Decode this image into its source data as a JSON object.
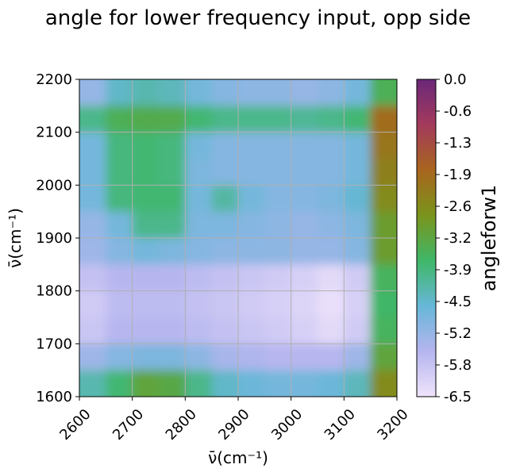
{
  "chart_data": {
    "type": "heatmap",
    "title": "angle for lower frequency input, opp side",
    "xlabel": "ν̄(cm⁻¹)",
    "ylabel": "ν̄(cm⁻¹)",
    "xlim": [
      2600,
      3200
    ],
    "ylim": [
      1600,
      2200
    ],
    "x_ticks": [
      "2600",
      "2700",
      "2800",
      "2900",
      "3000",
      "3100",
      "3200"
    ],
    "y_ticks": [
      "1600",
      "1700",
      "1800",
      "1900",
      "2000",
      "2100",
      "2200"
    ],
    "grid": true,
    "colorbar": {
      "label": "angleforw1",
      "range": [
        -6.5,
        0.0
      ],
      "tick_labels": [
        "0.0",
        "-0.6",
        "-1.3",
        "-1.9",
        "-2.6",
        "-3.2",
        "-3.9",
        "-4.5",
        "-5.2",
        "-5.8",
        "-6.5"
      ],
      "colors": [
        "#f0e4fb",
        "#b5b5ef",
        "#67b7d8",
        "#3fb768",
        "#7a941c",
        "#a8651e",
        "#a43a5c",
        "#6a2879"
      ]
    },
    "z_grid": {
      "x_centers": [
        2625,
        2675,
        2725,
        2775,
        2825,
        2875,
        2925,
        2975,
        3025,
        3075,
        3125,
        3175
      ],
      "y_centers": [
        2175,
        2125,
        2075,
        2025,
        1975,
        1925,
        1875,
        1825,
        1775,
        1725,
        1675,
        1625
      ],
      "values": [
        [
          -5.2,
          -4.5,
          -4.3,
          -4.4,
          -4.8,
          -5.0,
          -5.1,
          -5.1,
          -5.2,
          -5.1,
          -4.8,
          -3.5
        ],
        [
          -4.0,
          -3.5,
          -3.4,
          -3.4,
          -3.8,
          -4.0,
          -4.0,
          -4.0,
          -4.1,
          -4.0,
          -3.8,
          -2.0
        ],
        [
          -4.8,
          -3.9,
          -3.8,
          -3.9,
          -4.8,
          -5.0,
          -5.0,
          -5.0,
          -5.0,
          -5.0,
          -4.8,
          -2.2
        ],
        [
          -4.8,
          -3.9,
          -3.8,
          -3.9,
          -4.9,
          -5.0,
          -5.0,
          -5.0,
          -5.0,
          -5.0,
          -4.8,
          -2.4
        ],
        [
          -4.8,
          -3.9,
          -3.8,
          -3.8,
          -4.8,
          -4.2,
          -4.8,
          -5.0,
          -5.0,
          -4.9,
          -4.6,
          -2.6
        ],
        [
          -5.2,
          -4.8,
          -4.0,
          -4.0,
          -4.9,
          -4.9,
          -5.0,
          -5.1,
          -5.2,
          -5.1,
          -4.9,
          -3.0
        ],
        [
          -5.3,
          -5.0,
          -4.8,
          -4.9,
          -5.0,
          -5.1,
          -5.1,
          -5.1,
          -5.2,
          -5.2,
          -5.0,
          -3.0
        ],
        [
          -5.8,
          -5.6,
          -5.6,
          -5.6,
          -5.7,
          -5.8,
          -5.9,
          -6.0,
          -6.1,
          -6.3,
          -6.0,
          -3.6
        ],
        [
          -6.0,
          -5.7,
          -5.7,
          -5.7,
          -5.8,
          -5.9,
          -6.0,
          -6.1,
          -6.2,
          -6.4,
          -6.1,
          -3.7
        ],
        [
          -5.9,
          -5.6,
          -5.6,
          -5.6,
          -5.7,
          -5.8,
          -5.9,
          -6.0,
          -6.1,
          -6.3,
          -6.0,
          -3.6
        ],
        [
          -5.3,
          -5.0,
          -4.9,
          -4.9,
          -5.1,
          -5.4,
          -5.5,
          -5.6,
          -5.6,
          -5.6,
          -5.3,
          -3.2
        ],
        [
          -4.3,
          -3.8,
          -3.2,
          -3.3,
          -4.0,
          -4.5,
          -4.7,
          -4.8,
          -4.8,
          -4.7,
          -4.4,
          -2.6
        ]
      ]
    }
  }
}
